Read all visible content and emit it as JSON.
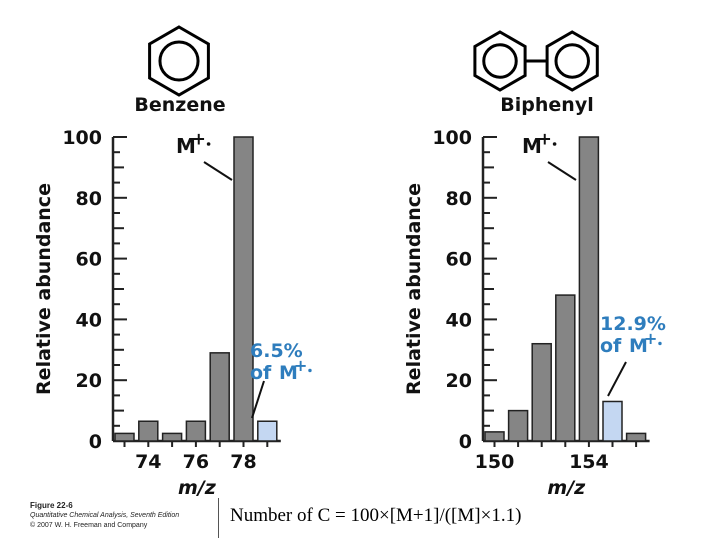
{
  "colors": {
    "bar": "#858585",
    "highlight": "#c4d7f2",
    "accent": "#2e7dbd",
    "axis": "#222222"
  },
  "chart_data": [
    {
      "type": "bar",
      "molecule": "benzene",
      "title": "Benzene",
      "ylabel": "Relative abundance",
      "xlabel": "m/z",
      "ylim": [
        0,
        100
      ],
      "yticks": [
        0,
        20,
        40,
        60,
        80,
        100
      ],
      "xticks": [
        74,
        76,
        78
      ],
      "bars": [
        {
          "x": 73,
          "value": 2.5
        },
        {
          "x": 74,
          "value": 6.5
        },
        {
          "x": 75,
          "value": 2.5
        },
        {
          "x": 76,
          "value": 6.5
        },
        {
          "x": 77,
          "value": 29
        },
        {
          "x": 78,
          "value": 100,
          "label": "M+·"
        },
        {
          "x": 79,
          "value": 6.5,
          "highlight": true,
          "label_lines": [
            "6.5%",
            "of M+·"
          ]
        }
      ]
    },
    {
      "type": "bar",
      "molecule": "biphenyl",
      "title": "Biphenyl",
      "ylabel": "Relative abundance",
      "xlabel": "m/z",
      "ylim": [
        0,
        100
      ],
      "yticks": [
        0,
        20,
        40,
        60,
        80,
        100
      ],
      "xticks": [
        150,
        154
      ],
      "bars": [
        {
          "x": 150,
          "value": 3
        },
        {
          "x": 151,
          "value": 10
        },
        {
          "x": 152,
          "value": 32
        },
        {
          "x": 153,
          "value": 48
        },
        {
          "x": 154,
          "value": 100,
          "label": "M+·"
        },
        {
          "x": 155,
          "value": 13,
          "highlight": true,
          "label_lines": [
            "12.9%",
            "of M+·"
          ]
        },
        {
          "x": 156,
          "value": 2.5
        }
      ]
    }
  ],
  "caption": {
    "figure_number": "Figure 22-6",
    "source": "Quantitative Chemical Analysis, Seventh Edition",
    "copyright": "© 2007 W. H. Freeman and Company"
  },
  "formula": "Number of C = 100×[M+1]/([M]×1.1)"
}
